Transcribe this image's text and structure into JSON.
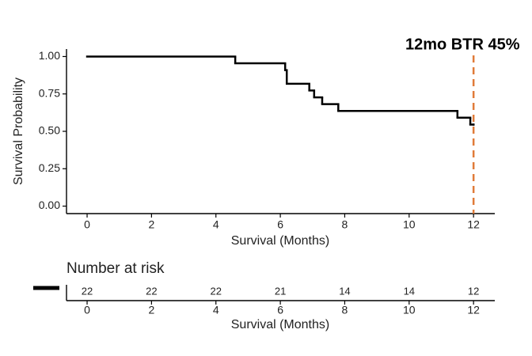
{
  "chart_data": {
    "type": "step",
    "title": "12mo BTR 45%",
    "xlabel": "Survival (Months)",
    "ylabel": "Survival Probability",
    "x": [
      0,
      4.6,
      6.15,
      6.2,
      6.9,
      7.05,
      7.3,
      7.8,
      11.5,
      11.9,
      12
    ],
    "values": [
      1.0,
      0.955,
      0.909,
      0.818,
      0.773,
      0.727,
      0.682,
      0.636,
      0.591,
      0.545,
      0.545
    ],
    "color": "#000000",
    "marker_x": 12,
    "marker_color": "#e07b39",
    "xlim": [
      -0.64,
      12.66
    ],
    "ylim": [
      -0.05,
      1.05
    ],
    "xticks": [
      0,
      2,
      4,
      6,
      8,
      10,
      12
    ],
    "yticks": [
      {
        "value": 0,
        "label": "0.00"
      },
      {
        "value": 0.25,
        "label": "0.25"
      },
      {
        "value": 0.5,
        "label": "0.50"
      },
      {
        "value": 0.75,
        "label": "0.75"
      },
      {
        "value": 1,
        "label": "1.00"
      }
    ],
    "risk_table": {
      "title": "Number at risk",
      "x": [
        0,
        2,
        4,
        6,
        8,
        10,
        12
      ],
      "values": [
        22,
        22,
        22,
        21,
        14,
        14,
        12
      ],
      "xlabel": "Survival (Months)",
      "xticks": [
        0,
        2,
        4,
        6,
        8,
        10,
        12
      ]
    }
  }
}
